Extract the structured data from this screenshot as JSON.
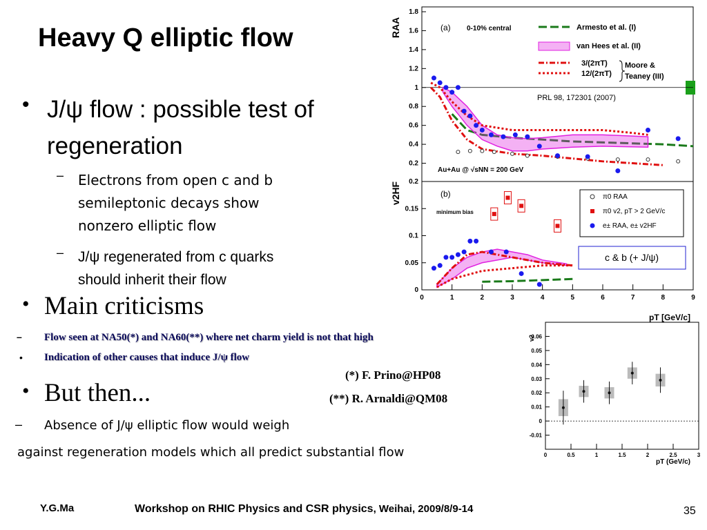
{
  "title": "Heavy Q elliptic flow",
  "bullet1": "J/ψ flow : possible test of regeneration",
  "sub1": [
    "Electrons from open c and b semileptonic decays show nonzero elliptic flow",
    "J/ψ regenerated from c quarks should inherit their flow"
  ],
  "bullet2": "Main criticisms",
  "criticisms": [
    "Flow seen at NA50(*) and NA60(**) where net charm yield is not that high",
    "Indication of other causes that induce J/ψ flow"
  ],
  "refs": [
    "(*) F. Prino@HP08",
    "(**) R. Arnaldi@QM08"
  ],
  "bullet3": "But then...",
  "absence": "Absence of J/ψ elliptic flow would weigh",
  "against": "against regeneration models which all predict substantial flow",
  "footer": {
    "author": "Y.G.Ma",
    "workshop": "Workshop on RHIC Physics and CSR physics",
    "place": ", Weihai, 2009/8/9-14",
    "page": "35"
  },
  "note_box": "c & b (+ J/ψ)",
  "chart_data": [
    {
      "type": "scatter",
      "panel": "(a)",
      "ylabel": "RAA",
      "subtitle": "0-10% central",
      "annotations": [
        "Moore &",
        "Teaney (III)",
        "PRL 98, 172301 (2007)",
        "Au+Au @ √sNN = 200 GeV"
      ],
      "xlim": [
        0,
        9
      ],
      "ylim": [
        0,
        1.8
      ],
      "yticks": [
        0.2,
        0.4,
        0.6,
        0.8,
        1,
        1.2,
        1.4,
        1.6,
        1.8
      ],
      "hline": 1,
      "series": [
        {
          "name": "Armesto et al. (I)",
          "color": "#1a7a1a",
          "mode": "dashed",
          "x": [
            1,
            1.5,
            2,
            3,
            4,
            5,
            6,
            7,
            8,
            9
          ],
          "values": [
            0.72,
            0.55,
            0.5,
            0.47,
            0.45,
            0.43,
            0.42,
            0.41,
            0.4,
            0.38
          ]
        },
        {
          "name": "van Hees et al. (II)",
          "color": "#e020e0",
          "mode": "band",
          "x": [
            0.7,
            1,
            1.5,
            2,
            2.5,
            3,
            3.5,
            4,
            5,
            6,
            7.5
          ],
          "values": [
            0.95,
            0.8,
            0.6,
            0.45,
            0.38,
            0.33,
            0.33,
            0.35,
            0.37,
            0.38,
            0.37
          ],
          "upper": [
            1.0,
            0.95,
            0.8,
            0.6,
            0.5,
            0.47,
            0.46,
            0.47,
            0.5,
            0.5,
            0.48
          ]
        },
        {
          "name": "3/(2πT)",
          "color": "#e01010",
          "mode": "dotdash",
          "x": [
            0.3,
            0.6,
            1,
            1.5,
            2,
            3,
            4,
            5,
            6,
            7,
            8
          ],
          "values": [
            1.0,
            0.9,
            0.65,
            0.45,
            0.35,
            0.3,
            0.28,
            0.25,
            0.22,
            0.2,
            0.18
          ]
        },
        {
          "name": "12/(2πT)",
          "color": "#e01010",
          "mode": "dotted",
          "x": [
            0.3,
            0.6,
            1,
            1.5,
            2,
            3,
            4,
            5,
            6,
            7,
            7.5
          ],
          "values": [
            1.05,
            1.0,
            0.85,
            0.7,
            0.6,
            0.55,
            0.55,
            0.55,
            0.55,
            0.52,
            0.5
          ]
        },
        {
          "color": "#333333",
          "mode": "open-markers",
          "x": [
            1.2,
            1.6,
            2.0,
            2.4,
            3.0,
            3.5,
            4.5,
            5.5,
            6.5,
            7.5,
            8.5
          ],
          "values": [
            0.32,
            0.33,
            0.33,
            0.32,
            0.3,
            0.28,
            0.27,
            0.25,
            0.24,
            0.24,
            0.22
          ]
        },
        {
          "color": "#1a1aee",
          "mode": "markers",
          "x": [
            0.4,
            0.6,
            0.8,
            1.0,
            1.2,
            1.4,
            1.6,
            1.8,
            2.0,
            2.3,
            2.7,
            3.1,
            3.5,
            3.9,
            4.5,
            5.5,
            6.5,
            7.5,
            8.5
          ],
          "values": [
            1.1,
            1.05,
            1.0,
            0.95,
            1.0,
            0.75,
            0.7,
            0.6,
            0.55,
            0.5,
            0.48,
            0.5,
            0.48,
            0.38,
            0.28,
            0.27,
            0.12,
            0.55,
            0.46
          ]
        }
      ]
    },
    {
      "type": "scatter",
      "panel": "(b)",
      "ylabel": "v2HF",
      "subtitle": "minimum bias",
      "xlabel": "pT [GeV/c]",
      "legend": [
        "π0 RAA",
        "π0 v2, pT > 2 GeV/c",
        "e± RAA, e± v2HF"
      ],
      "xlim": [
        0,
        9
      ],
      "ylim": [
        0,
        0.2
      ],
      "xticks": [
        0,
        1,
        2,
        3,
        4,
        5,
        6,
        7,
        8,
        9
      ],
      "yticks": [
        0,
        0.05,
        0.1,
        0.15,
        0.2
      ],
      "series": [
        {
          "color": "#e020e0",
          "mode": "band",
          "x": [
            0.5,
            1,
            1.5,
            2,
            2.5,
            3,
            3.5,
            4,
            4.8
          ],
          "values": [
            0.005,
            0.02,
            0.04,
            0.05,
            0.055,
            0.06,
            0.055,
            0.05,
            0.045
          ],
          "upper": [
            0.01,
            0.04,
            0.06,
            0.07,
            0.075,
            0.07,
            0.065,
            0.055,
            0.048
          ]
        },
        {
          "color": "#1a7a1a",
          "mode": "dashed",
          "x": [
            2,
            3,
            4,
            5
          ],
          "values": [
            0.015,
            0.016,
            0.018,
            0.02
          ]
        },
        {
          "color": "#e01010",
          "mode": "dotdash",
          "x": [
            0.5,
            1,
            1.5,
            2,
            3,
            4,
            5
          ],
          "values": [
            0.01,
            0.04,
            0.065,
            0.07,
            0.06,
            0.05,
            0.045
          ]
        },
        {
          "color": "#e01010",
          "mode": "dotted",
          "x": [
            0.5,
            1,
            2,
            3,
            4,
            5
          ],
          "values": [
            0.005,
            0.02,
            0.035,
            0.04,
            0.045,
            0.045
          ]
        },
        {
          "color": "#e01010",
          "mode": "square-markers",
          "x": [
            2.4,
            2.85,
            3.3,
            4.5
          ],
          "values": [
            0.14,
            0.17,
            0.155,
            0.118
          ]
        },
        {
          "color": "#1a1aee",
          "mode": "markers",
          "x": [
            0.4,
            0.6,
            0.8,
            1.0,
            1.2,
            1.4,
            1.6,
            1.8,
            2.3,
            2.8,
            3.3,
            3.9
          ],
          "values": [
            0.04,
            0.045,
            0.06,
            0.06,
            0.065,
            0.07,
            0.09,
            0.09,
            0.07,
            0.07,
            0.03,
            0.01
          ]
        }
      ]
    },
    {
      "type": "scatter",
      "ylabel": "v2",
      "xlabel": "pT (GeV/c)",
      "xlim": [
        0,
        3
      ],
      "ylim": [
        -0.02,
        0.07
      ],
      "xticks": [
        0,
        0.5,
        1,
        1.5,
        2,
        2.5,
        3
      ],
      "yticks": [
        -0.01,
        0,
        0.01,
        0.02,
        0.03,
        0.04,
        0.05,
        0.06
      ],
      "hline": 0,
      "series": [
        {
          "color": "#111111",
          "mode": "error-markers",
          "x": [
            0.35,
            0.75,
            1.25,
            1.7,
            2.25
          ],
          "values": [
            0.0095,
            0.021,
            0.02,
            0.034,
            0.029
          ],
          "errors": [
            0.012,
            0.008,
            0.008,
            0.008,
            0.009
          ]
        }
      ]
    }
  ]
}
